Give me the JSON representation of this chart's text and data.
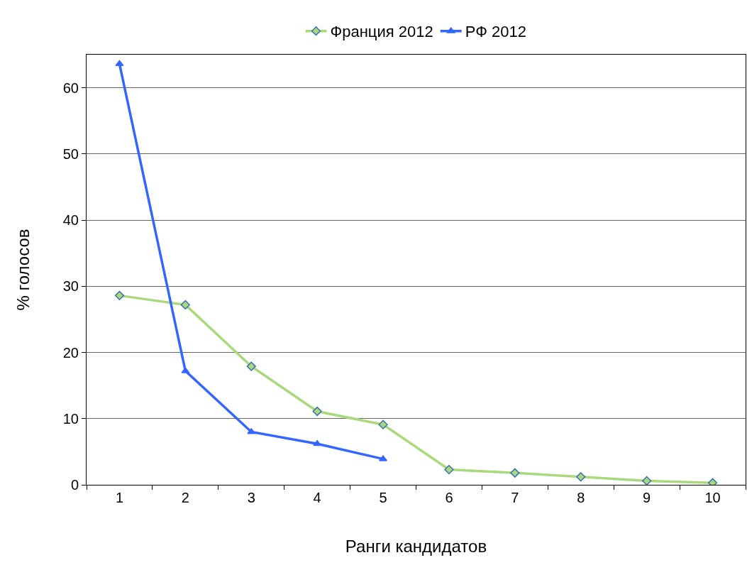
{
  "chart_data": {
    "type": "line",
    "xlabel": "Ранги кандидатов",
    "ylabel": "% голосов",
    "categories": [
      "1",
      "2",
      "3",
      "4",
      "5",
      "6",
      "7",
      "8",
      "9",
      "10"
    ],
    "ylim": [
      0,
      65
    ],
    "yticks": [
      0,
      10,
      20,
      30,
      40,
      50,
      60
    ],
    "grid": "y",
    "legend": "top",
    "series": [
      {
        "name": "Франция 2012",
        "color": "#a9d97c",
        "marker": "diamond",
        "values": [
          28.6,
          27.2,
          17.9,
          11.1,
          9.1,
          2.3,
          1.8,
          1.2,
          0.6,
          0.3
        ]
      },
      {
        "name": "РФ 2012",
        "color": "#3366ff",
        "marker": "triangle",
        "values": [
          63.6,
          17.2,
          8.0,
          6.2,
          3.9,
          null,
          null,
          null,
          null,
          null
        ]
      }
    ]
  }
}
